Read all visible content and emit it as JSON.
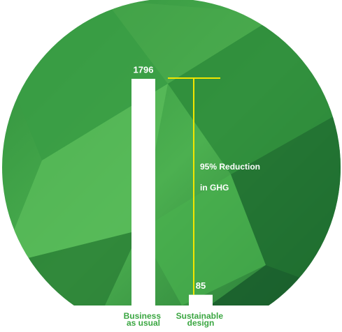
{
  "chart_data": {
    "type": "bar",
    "categories": [
      "Business as usual",
      "Sustainable design"
    ],
    "values": [
      1796,
      85
    ],
    "color": "#ffffff",
    "annotation": [
      "95% Reduction",
      "in GHG"
    ],
    "annotation_color": "#f2e600",
    "label_color": "#3aa641"
  }
}
